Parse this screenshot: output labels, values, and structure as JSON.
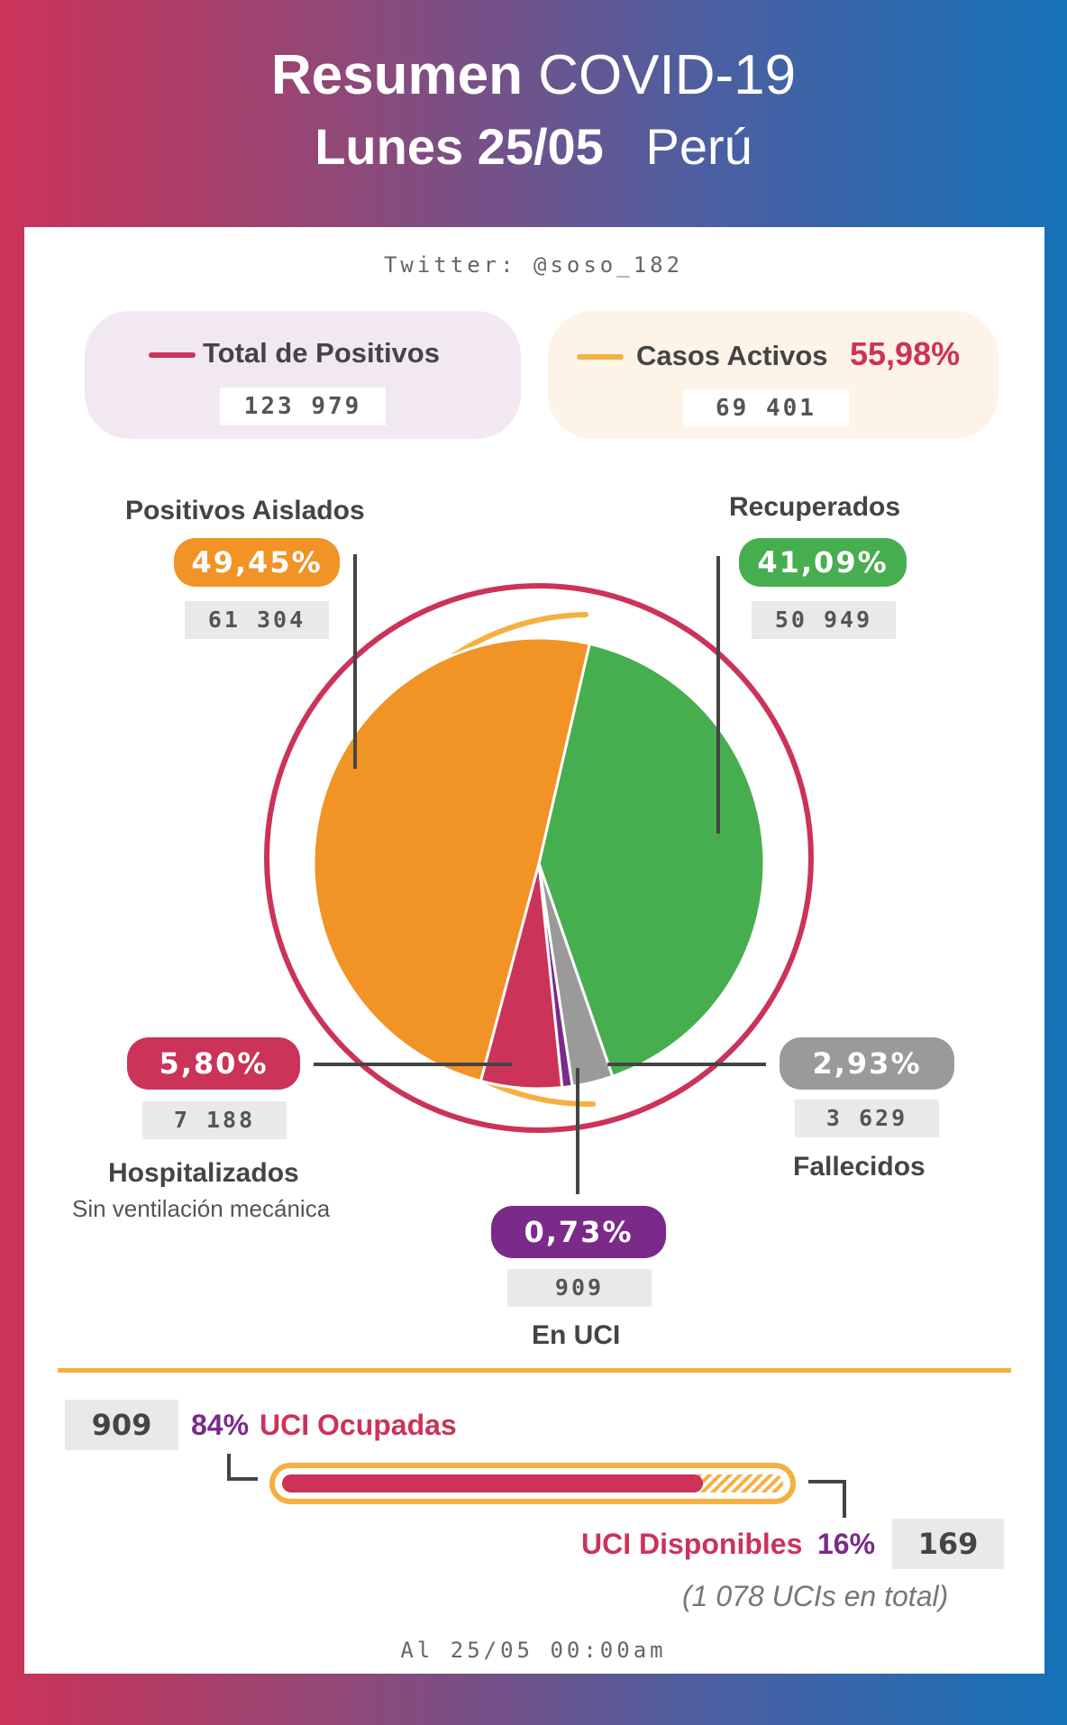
{
  "header": {
    "title_bold": "Resumen",
    "title_light": "COVID-19",
    "date": "Lunes 25/05",
    "country": "Perú"
  },
  "twitter": "Twitter: @soso_182",
  "summary": {
    "total_label": "Total de Positivos",
    "total_value": "123 979",
    "active_label": "Casos Activos",
    "active_pct": "55,98%",
    "active_value": "69 401"
  },
  "categories": {
    "aislados": {
      "label": "Positivos Aislados",
      "pct": "49,45%",
      "value": "61 304"
    },
    "recuperados": {
      "label": "Recuperados",
      "pct": "41,09%",
      "value": "50 949"
    },
    "hospitalizados": {
      "label": "Hospitalizados",
      "sublabel": "Sin ventilación mecánica",
      "pct": "5,80%",
      "value": "7 188"
    },
    "fallecidos": {
      "label": "Fallecidos",
      "pct": "2,93%",
      "value": "3 629"
    },
    "uci": {
      "label": "En UCI",
      "pct": "0,73%",
      "value": "909"
    }
  },
  "uci_summary": {
    "occupied_value": "909",
    "occupied_pct": "84%",
    "occupied_label": "UCI Ocupadas",
    "available_label": "UCI Disponibles",
    "available_pct": "16%",
    "available_value": "169",
    "total_text": "(1 078 UCIs en total)",
    "occupied_fraction": 0.84
  },
  "footer": "Al 25/05 00:00am",
  "colors": {
    "orange": "#f19325",
    "green": "#47ae4f",
    "red": "#cc3358",
    "grey": "#9a9a9a",
    "purple": "#7b2a8a",
    "yellow": "#f5b042"
  },
  "chart_data": {
    "type": "pie",
    "title": "Resumen COVID-19 Lunes 25/05 Perú",
    "categories": [
      "Recuperados",
      "Fallecidos",
      "En UCI",
      "Hospitalizados",
      "Positivos Aislados"
    ],
    "values": [
      41.09,
      2.93,
      0.73,
      5.8,
      49.45
    ],
    "counts": [
      50949,
      3629,
      909,
      7188,
      61304
    ],
    "colors": [
      "#47ae4f",
      "#9a9a9a",
      "#7b2a8a",
      "#cc3358",
      "#f19325"
    ],
    "start_angle_deg": 13
  }
}
